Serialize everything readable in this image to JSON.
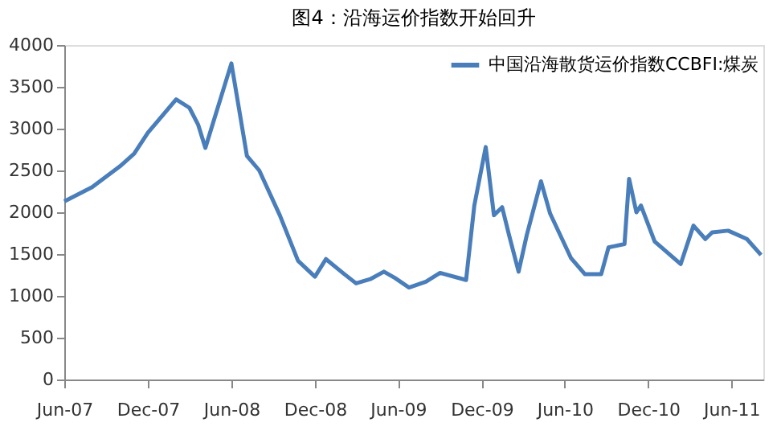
{
  "chart_data": {
    "type": "line",
    "title": "图4：沿海运价指数开始回升",
    "x": [
      "2007-06-01",
      "2007-08-01",
      "2007-10-01",
      "2007-11-01",
      "2007-12-01",
      "2008-01-01",
      "2008-02-01",
      "2008-03-01",
      "2008-03-20",
      "2008-04-05",
      "2008-06-01",
      "2008-07-05",
      "2008-08-01",
      "2008-09-15",
      "2008-10-25",
      "2008-12-01",
      "2008-12-25",
      "2009-02-01",
      "2009-03-01",
      "2009-04-01",
      "2009-05-01",
      "2009-05-25",
      "2009-06-25",
      "2009-08-01",
      "2009-09-01",
      "2009-10-28",
      "2009-11-15",
      "2009-12-10",
      "2009-12-28",
      "2010-01-15",
      "2010-01-30",
      "2010-02-20",
      "2010-03-10",
      "2010-04-10",
      "2010-04-30",
      "2010-06-15",
      "2010-07-15",
      "2010-08-20",
      "2010-09-05",
      "2010-10-10",
      "2010-10-20",
      "2010-11-05",
      "2010-11-15",
      "2010-12-15",
      "2011-02-10",
      "2011-03-10",
      "2011-04-05",
      "2011-04-20",
      "2011-05-25",
      "2011-07-05",
      "2011-08-05"
    ],
    "series": [
      {
        "name": "中国沿海散货运价指数CCBFI:煤炭",
        "color": "#4a7ebb",
        "values": [
          2130,
          2300,
          2550,
          2700,
          2950,
          3150,
          3350,
          3250,
          3050,
          2770,
          3780,
          2675,
          2500,
          1965,
          1420,
          1230,
          1440,
          1270,
          1150,
          1200,
          1290,
          1215,
          1100,
          1170,
          1275,
          1190,
          2080,
          2780,
          1965,
          2060,
          1730,
          1290,
          1730,
          2370,
          1985,
          1450,
          1260,
          1260,
          1580,
          1620,
          2400,
          2000,
          2080,
          1650,
          1380,
          1840,
          1680,
          1760,
          1780,
          1680,
          1490
        ]
      }
    ],
    "xlim": [
      "2007-06-01",
      "2011-08-10"
    ],
    "xticks": [
      {
        "value": "2007-06-01",
        "label": "Jun-07"
      },
      {
        "value": "2007-12-01",
        "label": "Dec-07"
      },
      {
        "value": "2008-06-01",
        "label": "Jun-08"
      },
      {
        "value": "2008-12-01",
        "label": "Dec-08"
      },
      {
        "value": "2009-06-01",
        "label": "Jun-09"
      },
      {
        "value": "2009-12-01",
        "label": "Dec-09"
      },
      {
        "value": "2010-06-01",
        "label": "Jun-10"
      },
      {
        "value": "2010-12-01",
        "label": "Dec-10"
      },
      {
        "value": "2011-06-01",
        "label": "Jun-11"
      }
    ],
    "ylim": [
      0,
      4000
    ],
    "yticks": [
      0,
      500,
      1000,
      1500,
      2000,
      2500,
      3000,
      3500,
      4000
    ],
    "grid": false,
    "legend": "top right",
    "marker": "none",
    "line_style": "solid"
  }
}
